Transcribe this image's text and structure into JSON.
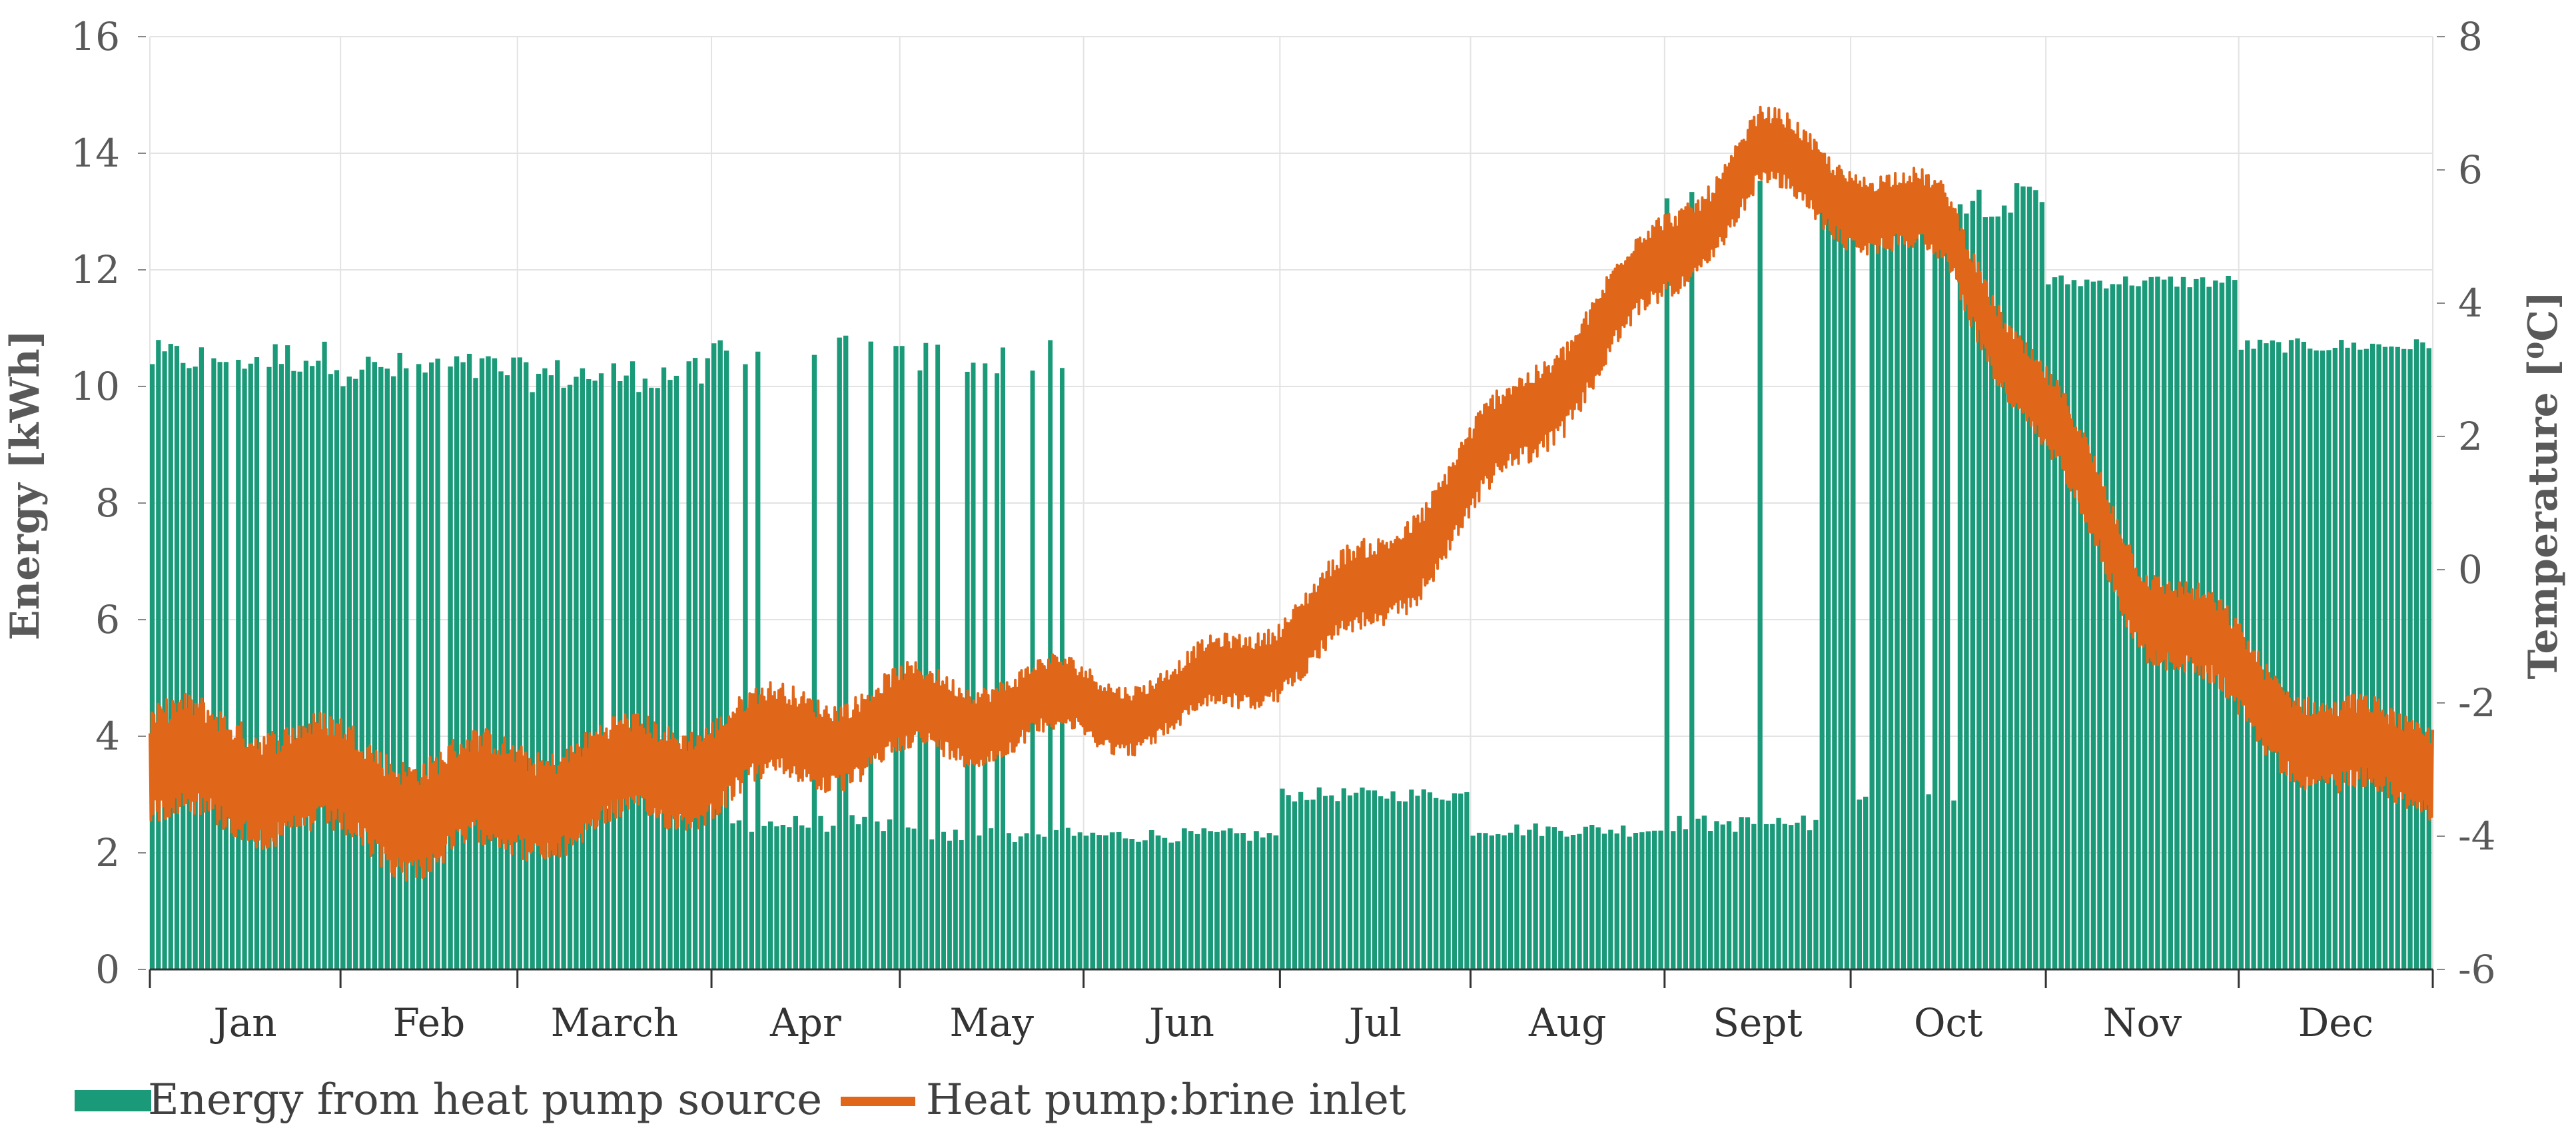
{
  "chart_data": {
    "type": "bar+line",
    "title": "",
    "xlabel": "",
    "ylabel": "Energy [kWh]",
    "y2label": "Temperature [⁰C]",
    "ylim": [
      0,
      16
    ],
    "y2lim": [
      -6,
      8
    ],
    "yticks": [
      0,
      2,
      4,
      6,
      8,
      10,
      12,
      14,
      16
    ],
    "y2ticks": [
      -6,
      -4,
      -2,
      0,
      2,
      4,
      6,
      8
    ],
    "grid": true,
    "legend_position": "bottom-left",
    "months": [
      "Jan",
      "Feb",
      "March",
      "Apr",
      "May",
      "Jun",
      "Jul",
      "Aug",
      "Sept",
      "Oct",
      "Nov",
      "Dec"
    ],
    "series": [
      {
        "name": "Energy from heat pump source",
        "type": "bar",
        "axis": "left",
        "color": "#1a9a78",
        "monthly_profile": [
          {
            "month": "Jan",
            "typical_daily_max": 10.5,
            "typical_low": 2.8
          },
          {
            "month": "Feb",
            "typical_daily_max": 10.3,
            "typical_low": 2.6
          },
          {
            "month": "March",
            "typical_daily_max": 10.2,
            "typical_low": 2.7
          },
          {
            "month": "Apr",
            "typical_daily_max": 10.6,
            "typical_low": 2.5
          },
          {
            "month": "May",
            "typical_daily_max": 10.5,
            "typical_low": 2.3
          },
          {
            "month": "Jun",
            "typical_daily_max": 2.3,
            "typical_low": 2.3
          },
          {
            "month": "Jul",
            "typical_daily_max": 3.0,
            "typical_low": 3.0
          },
          {
            "month": "Aug",
            "typical_daily_max": 2.4,
            "typical_low": 2.4
          },
          {
            "month": "Sept",
            "typical_daily_max": 13.5,
            "typical_low": 2.5
          },
          {
            "month": "Oct",
            "typical_daily_max": 13.2,
            "typical_low": 3.0
          },
          {
            "month": "Nov",
            "typical_daily_max": 11.8,
            "typical_low": 11.5
          },
          {
            "month": "Dec",
            "typical_daily_max": 10.7,
            "typical_low": 10.6
          }
        ]
      },
      {
        "name": "Heat pump:brine inlet",
        "type": "line",
        "axis": "right",
        "color": "#e0661a",
        "monthly_profile": [
          {
            "month": "Jan",
            "mean": -3.0,
            "band": 0.9
          },
          {
            "month": "Feb",
            "mean": -3.6,
            "band": 0.9
          },
          {
            "month": "March",
            "mean": -3.2,
            "band": 0.8
          },
          {
            "month": "Apr",
            "mean": -2.5,
            "band": 0.7
          },
          {
            "month": "May",
            "mean": -2.1,
            "band": 0.6
          },
          {
            "month": "Jun",
            "mean": -2.0,
            "band": 0.5
          },
          {
            "month": "Jul",
            "mean": -0.3,
            "band": 0.7
          },
          {
            "month": "Aug",
            "mean": 3.0,
            "band": 0.7
          },
          {
            "month": "Sept",
            "mean": 6.2,
            "band": 0.6
          },
          {
            "month": "Oct",
            "mean": 5.0,
            "band": 0.6
          },
          {
            "month": "Nov",
            "mean": -0.4,
            "band": 0.7
          },
          {
            "month": "Dec",
            "mean": -2.8,
            "band": 0.7
          }
        ]
      }
    ]
  },
  "legend": {
    "energy_label": "Energy from heat pump source",
    "temp_label": "Heat pump:brine inlet"
  },
  "colors": {
    "energy": "#1a9a78",
    "temperature": "#e0661a",
    "grid": "#e3e3e3",
    "axis": "#333333"
  }
}
